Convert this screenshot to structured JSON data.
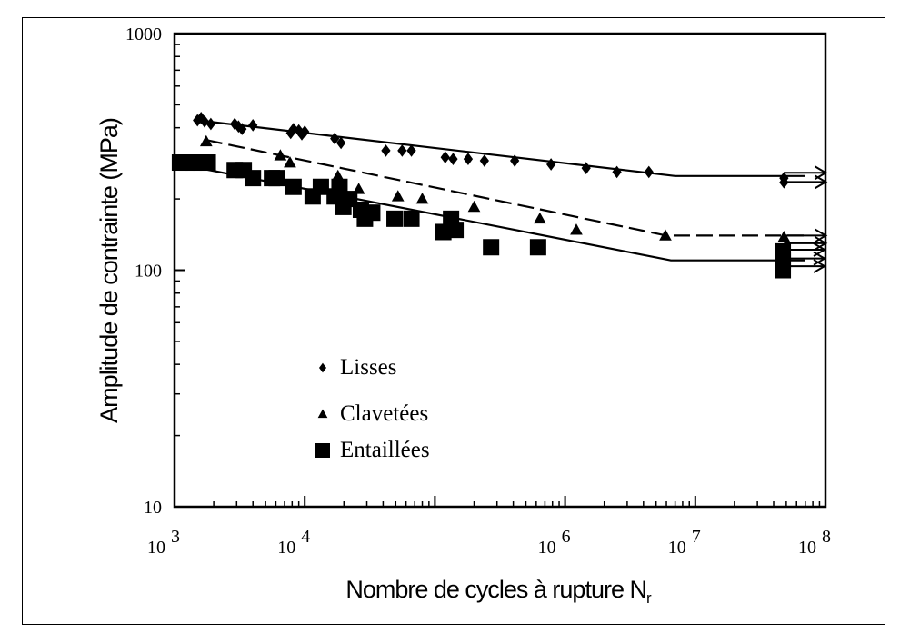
{
  "chart_data": {
    "type": "scatter",
    "title": "",
    "xlabel": "Nombre de cycles à rupture N",
    "xlabel_subscript": "r",
    "ylabel": "Amplitude de contrainte (MPa)",
    "x_scale": "log",
    "y_scale": "log",
    "xlim": [
      1000,
      100000000
    ],
    "ylim": [
      10,
      1000
    ],
    "x_ticks": [
      {
        "base": "10",
        "exp": "3",
        "value": 1000
      },
      {
        "base": "10",
        "exp": "4",
        "value": 10000
      },
      {
        "base": "10",
        "exp": "6",
        "value": 1000000
      },
      {
        "base": "10",
        "exp": "7",
        "value": 10000000
      },
      {
        "base": "10",
        "exp": "8",
        "value": 100000000
      }
    ],
    "y_ticks": [
      {
        "label": "1000",
        "value": 1000
      },
      {
        "label": "100",
        "value": 100
      },
      {
        "label": "10",
        "value": 10
      }
    ],
    "grid": false,
    "legend_position": "center-left",
    "series": [
      {
        "name": "Lisses",
        "marker": "diamond",
        "line_style": "solid",
        "color": "#000000",
        "points": [
          [
            1500,
            430
          ],
          [
            1600,
            440
          ],
          [
            1700,
            425
          ],
          [
            1900,
            415
          ],
          [
            2900,
            415
          ],
          [
            3100,
            405
          ],
          [
            3300,
            395
          ],
          [
            4000,
            410
          ],
          [
            7800,
            380
          ],
          [
            8200,
            395
          ],
          [
            9000,
            390
          ],
          [
            9500,
            375
          ],
          [
            10000,
            385
          ],
          [
            17000,
            360
          ],
          [
            19000,
            345
          ],
          [
            42000,
            320
          ],
          [
            56000,
            320
          ],
          [
            66000,
            320
          ],
          [
            120000,
            300
          ],
          [
            138000,
            295
          ],
          [
            180000,
            295
          ],
          [
            240000,
            290
          ],
          [
            410000,
            290
          ],
          [
            780000,
            280
          ],
          [
            1450000,
            270
          ],
          [
            2500000,
            260
          ],
          [
            4400000,
            260
          ],
          [
            48000000,
            245
          ],
          [
            48000000,
            235
          ]
        ],
        "fit_line": [
          [
            1500,
            430
          ],
          [
            7000000,
            250
          ],
          [
            70000000,
            250
          ]
        ],
        "runouts": [
          [
            48000000,
            258
          ],
          [
            48000000,
            236
          ]
        ]
      },
      {
        "name": "Clavetées",
        "marker": "triangle",
        "line_style": "dashed",
        "color": "#000000",
        "points": [
          [
            1750,
            350
          ],
          [
            6500,
            305
          ],
          [
            7700,
            285
          ],
          [
            18000,
            250
          ],
          [
            26000,
            220
          ],
          [
            52000,
            205
          ],
          [
            80000,
            200
          ],
          [
            200000,
            185
          ],
          [
            640000,
            165
          ],
          [
            1220000,
            148
          ],
          [
            5900000,
            140
          ],
          [
            48000000,
            138
          ]
        ],
        "fit_line": [
          [
            1750,
            355
          ],
          [
            6000000,
            140
          ],
          [
            70000000,
            140
          ]
        ],
        "runouts": [
          [
            48000000,
            140
          ],
          [
            48000000,
            130
          ]
        ]
      },
      {
        "name": "Entaillées",
        "marker": "square",
        "line_style": "solid",
        "color": "#000000",
        "points": [
          [
            1100,
            285
          ],
          [
            1250,
            285
          ],
          [
            1400,
            285
          ],
          [
            1600,
            285
          ],
          [
            1800,
            285
          ],
          [
            2900,
            265
          ],
          [
            3400,
            265
          ],
          [
            4000,
            245
          ],
          [
            5600,
            245
          ],
          [
            6100,
            245
          ],
          [
            8200,
            225
          ],
          [
            11500,
            205
          ],
          [
            13300,
            225
          ],
          [
            17000,
            205
          ],
          [
            18500,
            225
          ],
          [
            19800,
            185
          ],
          [
            22000,
            200
          ],
          [
            27000,
            180
          ],
          [
            29000,
            165
          ],
          [
            33000,
            175
          ],
          [
            49000,
            165
          ],
          [
            66000,
            165
          ],
          [
            116000,
            145
          ],
          [
            133000,
            165
          ],
          [
            144000,
            148
          ],
          [
            270000,
            125
          ],
          [
            620000,
            125
          ],
          [
            47000000,
            120
          ],
          [
            47000000,
            110
          ],
          [
            47000000,
            100
          ]
        ],
        "fit_line": [
          [
            1100,
            280
          ],
          [
            6500000,
            110
          ],
          [
            70000000,
            110
          ]
        ],
        "runouts": [
          [
            47000000,
            122
          ],
          [
            47000000,
            112
          ],
          [
            47000000,
            104
          ]
        ]
      }
    ]
  }
}
